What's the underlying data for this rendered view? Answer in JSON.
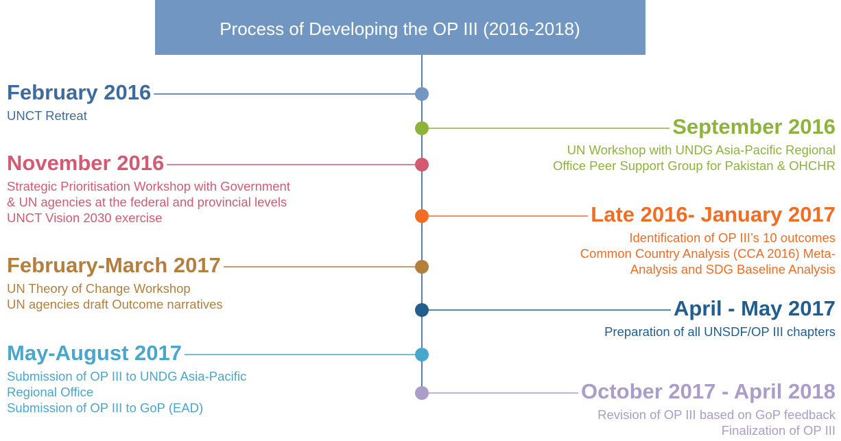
{
  "header": {
    "title": "Process of Developing the OP III (2016-2018)",
    "color": "#7096c1"
  },
  "events": [
    {
      "date": "February 2016",
      "lines": [
        "UNCT Retreat"
      ],
      "color": "#3e6b9e",
      "dot_color": "#7396c4"
    },
    {
      "date": "September 2016",
      "lines": [
        "UN Workshop with UNDG Asia-Pacific Regional",
        "Office Peer Support Group for Pakistan & OHCHR"
      ],
      "color": "#8db43a",
      "dot_color": "#8db43a"
    },
    {
      "date": "November 2016",
      "lines": [
        "Strategic Prioritisation Workshop with Government",
        "& UN agencies at the federal and provincial levels",
        "UNCT Vision 2030 exercise"
      ],
      "color": "#d35a71",
      "dot_color": "#d35a71"
    },
    {
      "date": "Late 2016- January 2017",
      "lines": [
        "Identification of OP III’s 10 outcomes",
        "Common Country Analysis (CCA 2016) Meta-",
        "Analysis and SDG Baseline Analysis"
      ],
      "color": "#f26c22",
      "dot_color": "#f26c22"
    },
    {
      "date": "February-March 2017",
      "lines": [
        "UN Theory of Change Workshop",
        "UN agencies draft Outcome narratives"
      ],
      "color": "#b47f3d",
      "dot_color": "#b47f3d"
    },
    {
      "date": "April - May 2017",
      "lines": [
        "Preparation of all UNSDF/OP III chapters"
      ],
      "color": "#1f5e8e",
      "dot_color": "#1f5e8e"
    },
    {
      "date": "May-August 2017",
      "lines": [
        "Submission of OP III to UNDG Asia-Pacific",
        "Regional Office",
        "Submission of OP III to GoP (EAD)"
      ],
      "color": "#49a6cc",
      "dot_color": "#49a6cc"
    },
    {
      "date": "October 2017 - April 2018",
      "lines": [
        "Revision of OP III based on GoP feedback",
        "Finalization of OP III"
      ],
      "color": "#ac9cc9",
      "dot_color": "#ac9cc9"
    }
  ]
}
